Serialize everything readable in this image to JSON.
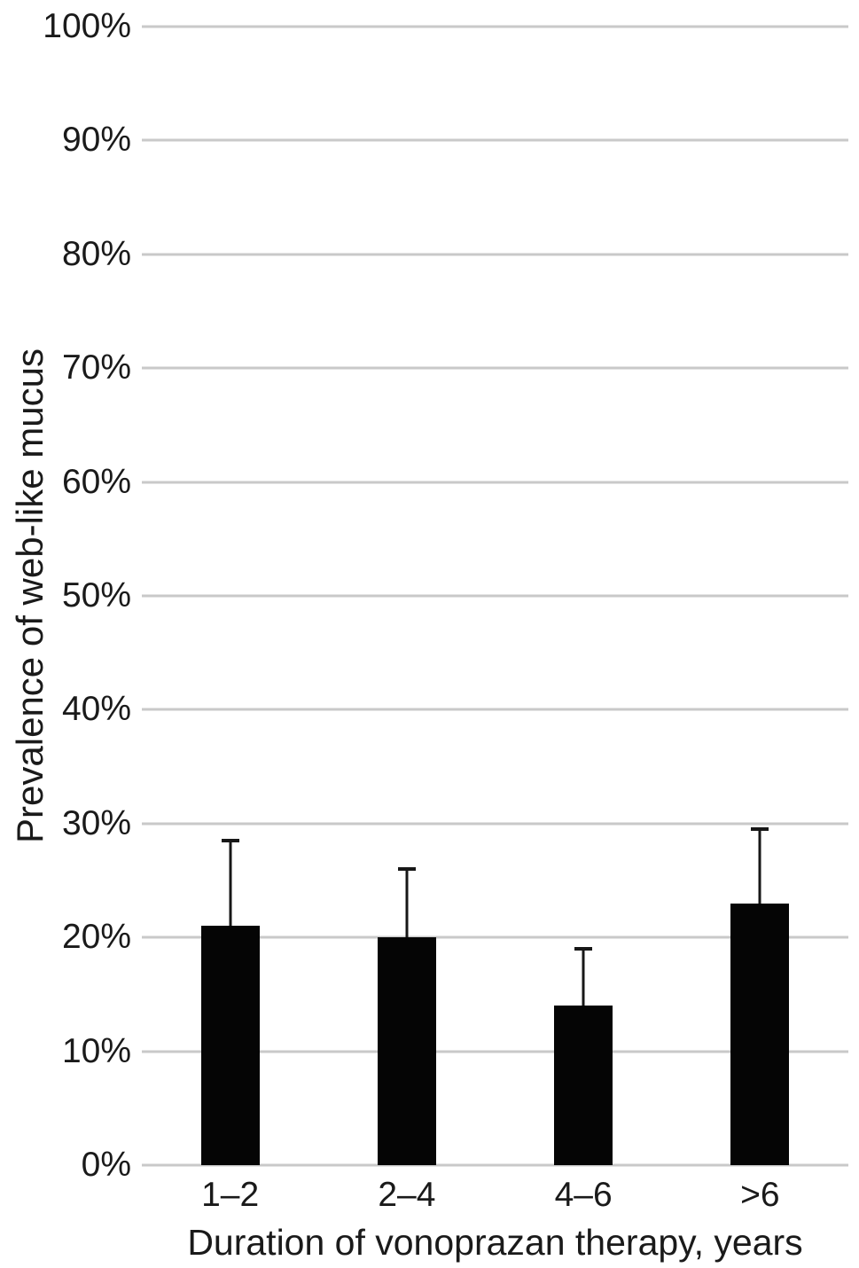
{
  "chart_data": {
    "type": "bar",
    "title": "",
    "xlabel": "Duration of vonoprazan therapy, years",
    "ylabel": "Prevalence of web-like mucus",
    "categories": [
      "1–2",
      "2–4",
      "4–6",
      ">6"
    ],
    "values": [
      21,
      20,
      14,
      23
    ],
    "error_upper_top": [
      28.5,
      26,
      19,
      29.5
    ],
    "y_ticks": [
      {
        "value": 0,
        "label": "0%"
      },
      {
        "value": 10,
        "label": "10%"
      },
      {
        "value": 20,
        "label": "20%"
      },
      {
        "value": 30,
        "label": "30%"
      },
      {
        "value": 40,
        "label": "40%"
      },
      {
        "value": 50,
        "label": "50%"
      },
      {
        "value": 60,
        "label": "60%"
      },
      {
        "value": 70,
        "label": "70%"
      },
      {
        "value": 80,
        "label": "80%"
      },
      {
        "value": 90,
        "label": "90%"
      },
      {
        "value": 100,
        "label": "100%"
      }
    ],
    "ylim": [
      0,
      100
    ],
    "grid": true,
    "legend": false,
    "bar_color": "#050505",
    "error_bar_color": "#171717",
    "gridline_color": "#c9c9c9",
    "text_color": "#1a1a1a",
    "background_color": "#ffffff"
  }
}
